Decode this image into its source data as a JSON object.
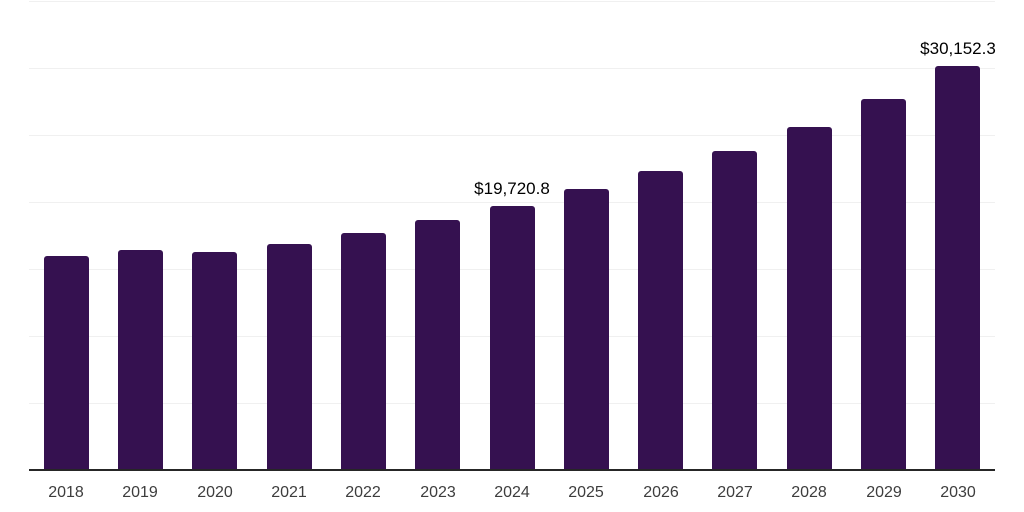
{
  "chart_data": {
    "type": "bar",
    "title": "",
    "xlabel": "",
    "ylabel": "",
    "categories": [
      "2018",
      "2019",
      "2020",
      "2021",
      "2022",
      "2023",
      "2024",
      "2025",
      "2026",
      "2027",
      "2028",
      "2029",
      "2030"
    ],
    "values": [
      15970,
      16420,
      16270,
      16870,
      17690,
      18660,
      19720.8,
      20970,
      22310,
      23810,
      25600,
      27690,
      30152.3
    ],
    "point_labels": {
      "2024": "$19,720.8",
      "2030": "$30,152.3"
    },
    "ylim": [
      0,
      35075
    ],
    "gridline_interval": 5000,
    "grid": "horizontal-only",
    "legend": "none",
    "colors": {
      "bar": "#351150",
      "axis_line": "#262626",
      "gridline": "#f0f0f0",
      "tick_label": "#3d3d3d",
      "data_label": "#000000",
      "background": "#ffffff"
    }
  }
}
